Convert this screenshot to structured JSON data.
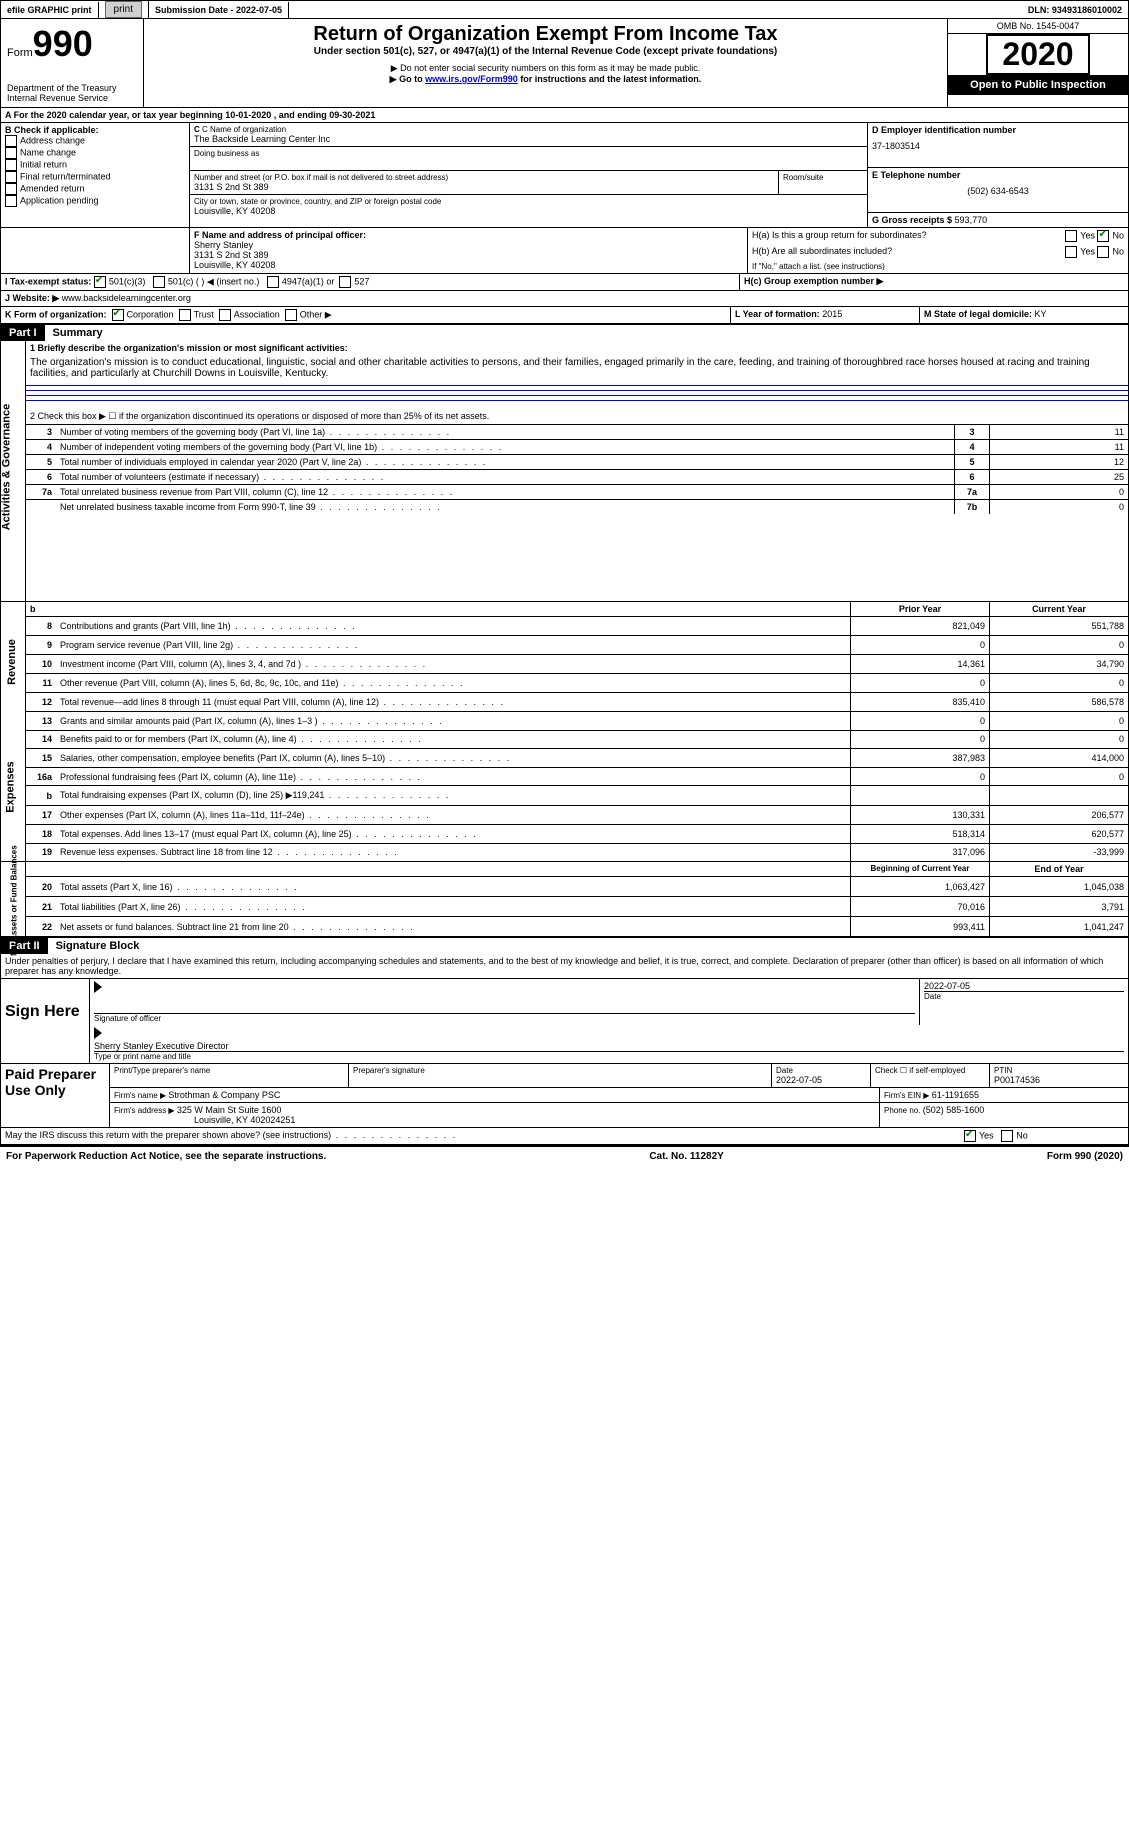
{
  "top": {
    "efile": "efile GRAPHIC print",
    "submission_label": "Submission Date - ",
    "submission_date": "2022-07-05",
    "dln_label": "DLN: ",
    "dln": "93493186010002"
  },
  "header": {
    "form_word": "Form",
    "form_num": "990",
    "title": "Return of Organization Exempt From Income Tax",
    "subtitle": "Under section 501(c), 527, or 4947(a)(1) of the Internal Revenue Code (except private foundations)",
    "note1": "▶ Do not enter social security numbers on this form as it may be made public.",
    "note2_pre": "▶ Go to ",
    "note2_link": "www.irs.gov/Form990",
    "note2_post": " for instructions and the latest information.",
    "dept1": "Department of the Treasury",
    "dept2": "Internal Revenue Service",
    "omb_label": "OMB No. ",
    "omb": "1545-0047",
    "year": "2020",
    "open_public": "Open to Public Inspection"
  },
  "periodA": "For the 2020 calendar year, or tax year beginning 10-01-2020    , and ending 09-30-2021",
  "sectionB": {
    "heading": "B Check if applicable:",
    "addr_change": "Address change",
    "name_change": "Name change",
    "initial": "Initial return",
    "final": "Final return/terminated",
    "amended": "Amended return",
    "app_pending": "Application pending"
  },
  "sectionC": {
    "label": "C Name of organization",
    "name": "The Backside Learning Center Inc",
    "dba_label": "Doing business as",
    "street_label": "Number and street (or P.O. box if mail is not delivered to street address)",
    "room_label": "Room/suite",
    "street": "3131 S 2nd St 389",
    "city_label": "City or town, state or province, country, and ZIP or foreign postal code",
    "city": "Louisville, KY  40208"
  },
  "sectionD": {
    "label": "D Employer identification number",
    "ein": "37-1803514"
  },
  "sectionE": {
    "label": "E Telephone number",
    "phone": "(502) 634-6543"
  },
  "sectionG": {
    "label": "G Gross receipts $ ",
    "amount": "593,770"
  },
  "sectionF": {
    "label": "F  Name and address of principal officer:",
    "name": "Sherry Stanley",
    "addr1": "3131 S 2nd St 389",
    "addr2": "Louisville, KY  40208"
  },
  "sectionH": {
    "ha": "H(a)  Is this a group return for subordinates?",
    "hb": "H(b)  Are all subordinates included?",
    "hb_note": "If \"No,\" attach a list. (see instructions)",
    "hc": "H(c)  Group exemption number ▶",
    "yes": "Yes",
    "no": "No"
  },
  "sectionI": {
    "label": "I    Tax-exempt status:",
    "c3": "501(c)(3)",
    "c": "501(c) (   ) ◀ (insert no.)",
    "a4947": "4947(a)(1) or",
    "s527": "527"
  },
  "sectionJ": {
    "label": "J   Website: ▶ ",
    "url": "www.backsidelearningcenter.org"
  },
  "sectionK": {
    "label": "K Form of organization:",
    "corp": "Corporation",
    "trust": "Trust",
    "assoc": "Association",
    "other": "Other ▶"
  },
  "sectionL": {
    "label": "L Year of formation: ",
    "year": "2015"
  },
  "sectionM": {
    "label": "M State of legal domicile: ",
    "state": "KY"
  },
  "part1": {
    "header": "Part I",
    "title": "Summary",
    "mission_label": "1   Briefly describe the organization's mission or most significant activities:",
    "mission": "The organization's mission is to conduct educational, linguistic, social and other charitable activities to persons, and their families, engaged primarily in the care, feeding, and training of thoroughbred race horses housed at racing and training facilities, and particularly at Churchill Downs in Louisville, Kentucky.",
    "line2": "2   Check this box ▶ ☐  if the organization discontinued its operations or disposed of more than 25% of its net assets.",
    "governance_rows": [
      {
        "n": "3",
        "t": "Number of voting members of the governing body (Part VI, line 1a)",
        "i": "3",
        "v": "11"
      },
      {
        "n": "4",
        "t": "Number of independent voting members of the governing body (Part VI, line 1b)",
        "i": "4",
        "v": "11"
      },
      {
        "n": "5",
        "t": "Total number of individuals employed in calendar year 2020 (Part V, line 2a)",
        "i": "5",
        "v": "12"
      },
      {
        "n": "6",
        "t": "Total number of volunteers (estimate if necessary)",
        "i": "6",
        "v": "25"
      },
      {
        "n": "7a",
        "t": "Total unrelated business revenue from Part VIII, column (C), line 12",
        "i": "7a",
        "v": "0"
      },
      {
        "n": "",
        "t": "Net unrelated business taxable income from Form 990-T, line 39",
        "i": "7b",
        "v": "0"
      }
    ],
    "col_py": "Prior Year",
    "col_cy": "Current Year",
    "revenue_rows": [
      {
        "n": "8",
        "t": "Contributions and grants (Part VIII, line 1h)",
        "py": "821,049",
        "cy": "551,788"
      },
      {
        "n": "9",
        "t": "Program service revenue (Part VIII, line 2g)",
        "py": "0",
        "cy": "0"
      },
      {
        "n": "10",
        "t": "Investment income (Part VIII, column (A), lines 3, 4, and 7d )",
        "py": "14,361",
        "cy": "34,790"
      },
      {
        "n": "11",
        "t": "Other revenue (Part VIII, column (A), lines 5, 6d, 8c, 9c, 10c, and 11e)",
        "py": "0",
        "cy": "0"
      },
      {
        "n": "12",
        "t": "Total revenue—add lines 8 through 11 (must equal Part VIII, column (A), line 12)",
        "py": "835,410",
        "cy": "586,578"
      }
    ],
    "expense_rows": [
      {
        "n": "13",
        "t": "Grants and similar amounts paid (Part IX, column (A), lines 1–3 )",
        "py": "0",
        "cy": "0"
      },
      {
        "n": "14",
        "t": "Benefits paid to or for members (Part IX, column (A), line 4)",
        "py": "0",
        "cy": "0"
      },
      {
        "n": "15",
        "t": "Salaries, other compensation, employee benefits (Part IX, column (A), lines 5–10)",
        "py": "387,983",
        "cy": "414,000"
      },
      {
        "n": "16a",
        "t": "Professional fundraising fees (Part IX, column (A), line 11e)",
        "py": "0",
        "cy": "0"
      },
      {
        "n": "b",
        "t": "Total fundraising expenses (Part IX, column (D), line 25) ▶119,241",
        "py": "",
        "cy": ""
      },
      {
        "n": "17",
        "t": "Other expenses (Part IX, column (A), lines 11a–11d, 11f–24e)",
        "py": "130,331",
        "cy": "206,577"
      },
      {
        "n": "18",
        "t": "Total expenses. Add lines 13–17 (must equal Part IX, column (A), line 25)",
        "py": "518,314",
        "cy": "620,577"
      },
      {
        "n": "19",
        "t": "Revenue less expenses. Subtract line 18 from line 12",
        "py": "317,096",
        "cy": "-33,999"
      }
    ],
    "col_boy": "Beginning of Current Year",
    "col_eoy": "End of Year",
    "net_rows": [
      {
        "n": "20",
        "t": "Total assets (Part X, line 16)",
        "py": "1,063,427",
        "cy": "1,045,038"
      },
      {
        "n": "21",
        "t": "Total liabilities (Part X, line 26)",
        "py": "70,016",
        "cy": "3,791"
      },
      {
        "n": "22",
        "t": "Net assets or fund balances. Subtract line 21 from line 20",
        "py": "993,411",
        "cy": "1,041,247"
      }
    ],
    "side_gov": "Activities & Governance",
    "side_rev": "Revenue",
    "side_exp": "Expenses",
    "side_net": "Net Assets or Fund Balances"
  },
  "part2": {
    "header": "Part II",
    "title": "Signature Block",
    "perjury": "Under penalties of perjury, I declare that I have examined this return, including accompanying schedules and statements, and to the best of my knowledge and belief, it is true, correct, and complete. Declaration of preparer (other than officer) is based on all information of which preparer has any knowledge.",
    "sign_here": "Sign Here",
    "sig_officer": "Signature of officer",
    "sig_date": "2022-07-05",
    "date_lbl": "Date",
    "officer_name": "Sherry Stanley  Executive Director",
    "type_name": "Type or print name and title",
    "paid_prep": "Paid Preparer Use Only",
    "pp_name_lbl": "Print/Type preparer's name",
    "pp_sig_lbl": "Preparer's signature",
    "pp_date_lbl": "Date",
    "pp_date": "2022-07-05",
    "pp_check": "Check ☐ if self-employed",
    "ptin_lbl": "PTIN",
    "ptin": "P00174536",
    "firm_name_lbl": "Firm's name    ▶ ",
    "firm_name": "Strothman & Company PSC",
    "firm_ein_lbl": "Firm's EIN ▶ ",
    "firm_ein": "61-1191655",
    "firm_addr_lbl": "Firm's address ▶ ",
    "firm_addr1": "325 W Main St Suite 1600",
    "firm_addr2": "Louisville, KY  402024251",
    "firm_phone_lbl": "Phone no. ",
    "firm_phone": "(502) 585-1600",
    "discuss": "May the IRS discuss this return with the preparer shown above? (see instructions)",
    "yes": "Yes",
    "no": "No"
  },
  "footer": {
    "pra": "For Paperwork Reduction Act Notice, see the separate instructions.",
    "cat": "Cat. No. 11282Y",
    "form": "Form 990 (2020)"
  },
  "colors": {
    "link": "#0000cc",
    "check_green": "#008000",
    "black": "#000000",
    "white": "#ffffff",
    "button_bg": "#d0d0d0"
  }
}
